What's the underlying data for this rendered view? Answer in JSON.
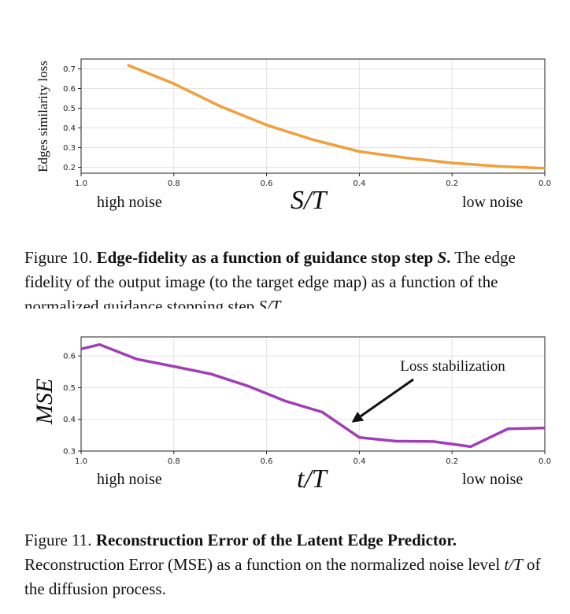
{
  "figure10": {
    "ylabel": "Edges similarity loss",
    "xlabel": "S/T",
    "left_note": "high noise",
    "right_note": "low noise",
    "caption_prefix": "Figure 10.",
    "caption_bold": "Edge-fidelity as a function of guidance stop step",
    "caption_bold_math": "S",
    "caption_bold_end": ".",
    "caption_body": "The edge fidelity of the output image (to the target edge map) as a function of the normalized guidance stopping step",
    "caption_body_math": "S/T",
    "caption_body_end": "."
  },
  "figure11": {
    "ylabel": "MSE",
    "xlabel": "t/T",
    "left_note": "high noise",
    "right_note": "low noise",
    "annotation": "Loss stabilization",
    "caption_prefix": "Figure 11.",
    "caption_bold": "Reconstruction Error of the Latent Edge Predictor.",
    "caption_body": "Reconstruction Error (MSE) as a function on the normalized noise level",
    "caption_body_math": "t/T",
    "caption_body_end": "of the diffusion process."
  },
  "chart_data": [
    {
      "type": "line",
      "xlabel": "S/T",
      "ylabel": "Edges similarity loss",
      "x": [
        0.9,
        0.8,
        0.7,
        0.6,
        0.5,
        0.4,
        0.3,
        0.2,
        0.1,
        0.0
      ],
      "series": [
        {
          "values": [
            0.72,
            0.625,
            0.51,
            0.415,
            0.34,
            0.28,
            0.248,
            0.222,
            0.205,
            0.195
          ]
        }
      ],
      "xlim": [
        1.0,
        0.0
      ],
      "ylim": [
        0.17,
        0.75
      ],
      "xticks": [
        "1.0",
        "0.8",
        "0.6",
        "0.4",
        "0.2",
        "0.0"
      ],
      "yticks": [
        "0.2",
        "0.3",
        "0.4",
        "0.5",
        "0.6",
        "0.7"
      ],
      "grid": true,
      "color": "#f0a03c"
    },
    {
      "type": "line",
      "xlabel": "t/T",
      "ylabel": "MSE",
      "x": [
        1.0,
        0.96,
        0.88,
        0.8,
        0.72,
        0.64,
        0.56,
        0.48,
        0.4,
        0.32,
        0.24,
        0.16,
        0.08,
        0.0
      ],
      "series": [
        {
          "values": [
            0.622,
            0.636,
            0.59,
            0.567,
            0.543,
            0.505,
            0.458,
            0.423,
            0.343,
            0.331,
            0.33,
            0.314,
            0.37,
            0.373
          ]
        }
      ],
      "xlim": [
        1.0,
        0.0
      ],
      "ylim": [
        0.3,
        0.66
      ],
      "xticks": [
        "1.0",
        "0.8",
        "0.6",
        "0.4",
        "0.2",
        "0.0"
      ],
      "yticks": [
        "0.3",
        "0.4",
        "0.5",
        "0.6"
      ],
      "grid": true,
      "annotation": {
        "text": "Loss stabilization",
        "arrow_to_x": 0.42
      },
      "color": "#a23db7"
    }
  ]
}
